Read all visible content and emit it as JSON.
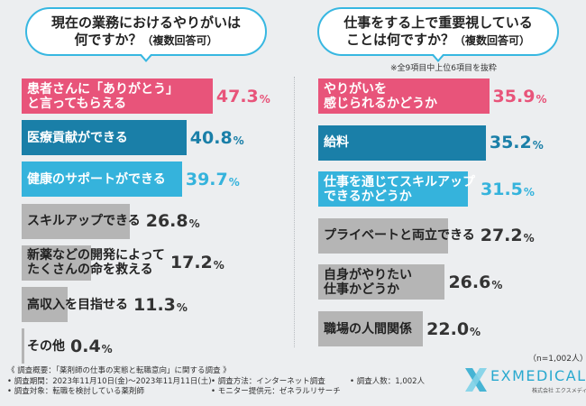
{
  "left_title": {
    "line1": "現在の業務におけるやりがいは",
    "line2": "何ですか？",
    "suffix": "（複数回答可）"
  },
  "right_title": {
    "line1": "仕事をする上で重要視している",
    "line2": "ことは何ですか？",
    "suffix": "（複数回答可）"
  },
  "note": "※全9項目中上位6項目を抜粋",
  "sample_size": "（n=1,002人）",
  "footer": {
    "overview": "《 調査概要：「薬剤師の仕事の実態と転職意向」に関する調査 》",
    "period": "• 調査期間：2023年11月10日(金)～2023年11月11日(土)",
    "target": "• 調査対象：転職を検討している薬剤師",
    "method": "• 調査方法：インターネット調査",
    "monitor": "• モニター提供元：ゼネラルリサーチ",
    "count": "• 調査人数：1,002人"
  },
  "logo": {
    "name": "EXMEDICAL",
    "company": "株式会社 エクスメディカル"
  },
  "colors": {
    "pink": "#e8547a",
    "dark_blue": "#1a7fa8",
    "light_blue": "#35b3dc",
    "gray": "#b5b5b5",
    "pink_text": "#e8547a",
    "blue_text": "#1a7fa8",
    "light_blue_text": "#35b3dc",
    "dark_text": "#333333"
  },
  "chart_data": [
    {
      "type": "bar",
      "orientation": "horizontal",
      "title": "現在の業務におけるやりがいは何ですか？（複数回答可）",
      "categories": [
        "患者さんに「ありがとう」と言ってもらえる",
        "医療貢献ができる",
        "健康のサポートができる",
        "スキルアップできる",
        "新薬などの開発によってたくさんの命を救える",
        "高収入を目指せる",
        "その他"
      ],
      "label_lines": [
        [
          "患者さんに「ありがとう」",
          "と言ってもらえる"
        ],
        [
          "医療貢献ができる"
        ],
        [
          "健康のサポートができる"
        ],
        [
          "スキルアップできる"
        ],
        [
          "新薬などの開発によって",
          "たくさんの命を救える"
        ],
        [
          "高収入を目指せる"
        ],
        [
          "その他"
        ]
      ],
      "values": [
        47.3,
        40.8,
        39.7,
        26.8,
        17.2,
        11.3,
        0.4
      ],
      "value_labels": [
        "47.3",
        "40.8",
        "39.7",
        "26.8",
        "17.2",
        "11.3",
        "0.4"
      ],
      "styles": [
        "pink",
        "dark_blue",
        "light_blue",
        "gray",
        "gray",
        "gray",
        "gray"
      ],
      "unit": "%"
    },
    {
      "type": "bar",
      "orientation": "horizontal",
      "title": "仕事をする上で重要視していることは何ですか？（複数回答可）",
      "categories": [
        "やりがいを感じられるかどうか",
        "給料",
        "仕事を通じてスキルアップできるかどうか",
        "プライベートと両立できる",
        "自身がやりたい仕事かどうか",
        "職場の人間関係"
      ],
      "label_lines": [
        [
          "やりがいを",
          "感じられるかどうか"
        ],
        [
          "給料"
        ],
        [
          "仕事を通じてスキルアップ",
          "できるかどうか"
        ],
        [
          "プライベートと両立できる"
        ],
        [
          "自身がやりたい",
          "仕事かどうか"
        ],
        [
          "職場の人間関係"
        ]
      ],
      "values": [
        35.9,
        35.2,
        31.5,
        27.2,
        26.6,
        22.0
      ],
      "value_labels": [
        "35.9",
        "35.2",
        "31.5",
        "27.2",
        "26.6",
        "22.0"
      ],
      "styles": [
        "pink",
        "dark_blue",
        "light_blue",
        "gray",
        "gray",
        "gray"
      ],
      "unit": "%"
    }
  ]
}
